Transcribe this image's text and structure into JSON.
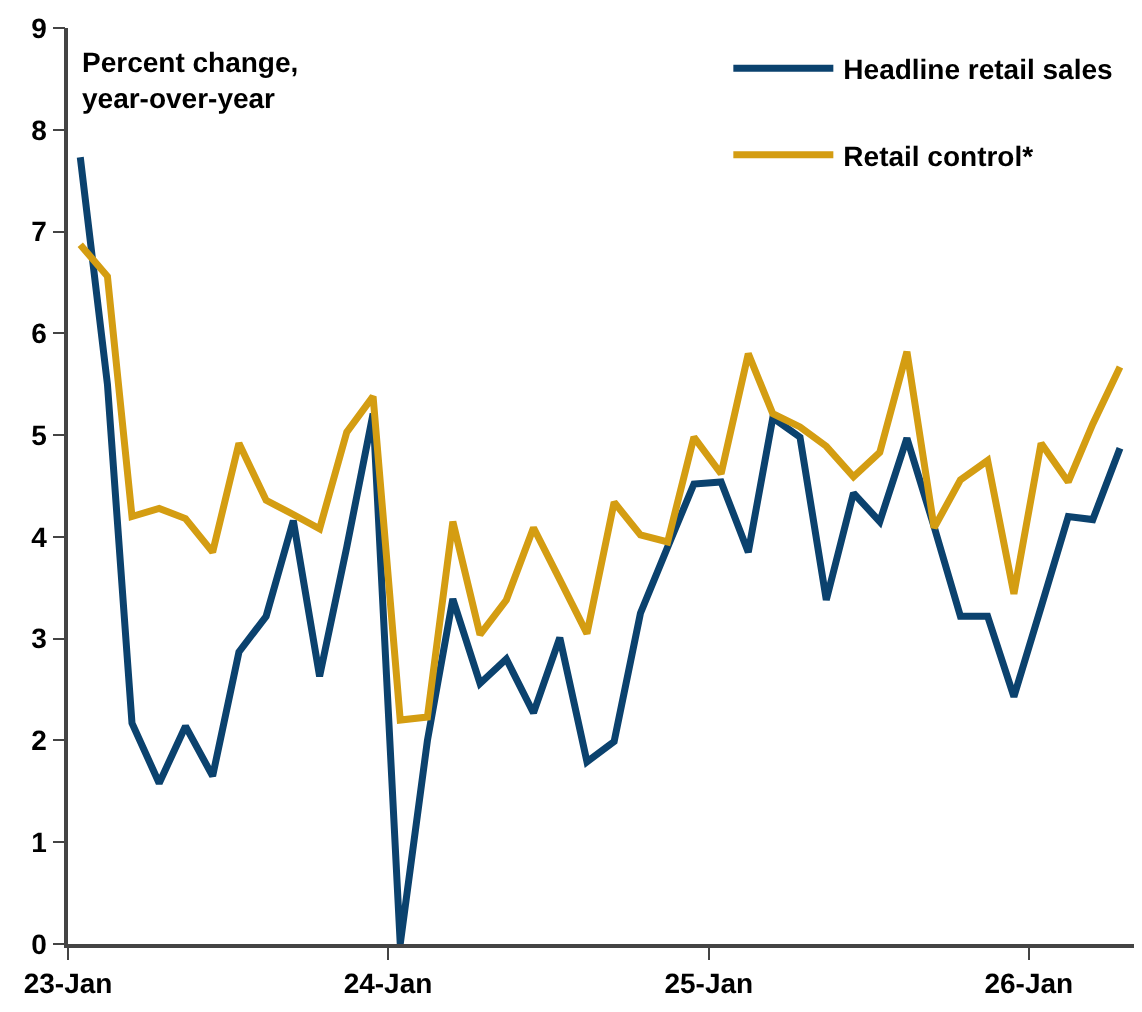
{
  "chart_data": {
    "type": "line",
    "x": [
      "2023-01-15",
      "2023-02-15",
      "2023-03-15",
      "2023-04-15",
      "2023-05-15",
      "2023-06-15",
      "2023-07-15",
      "2023-08-15",
      "2023-09-15",
      "2023-10-15",
      "2023-11-15",
      "2023-12-15",
      "2024-01-15",
      "2024-02-15",
      "2024-03-15",
      "2024-04-15",
      "2024-05-15",
      "2024-06-15",
      "2024-07-15",
      "2024-08-15",
      "2024-09-15",
      "2024-10-15",
      "2024-11-15",
      "2024-12-15",
      "2025-01-15",
      "2025-02-15",
      "2025-03-15",
      "2025-04-15",
      "2025-05-15",
      "2025-06-15",
      "2025-07-15",
      "2025-08-15",
      "2025-09-15",
      "2025-10-15",
      "2025-11-15",
      "2025-12-15",
      "2026-01-15",
      "2026-02-15",
      "2026-03-15",
      "2026-04-15"
    ],
    "series": [
      {
        "name": "Headline retail sales",
        "color": "#0b426e",
        "values": [
          7.73,
          5.5,
          2.17,
          1.58,
          2.14,
          1.65,
          2.87,
          3.22,
          4.16,
          2.63,
          3.9,
          5.21,
          0.0,
          2.0,
          3.39,
          2.56,
          2.8,
          2.27,
          3.01,
          1.79,
          1.99,
          3.25,
          3.9,
          4.52,
          4.54,
          3.85,
          5.17,
          4.98,
          3.38,
          4.43,
          4.15,
          4.97,
          4.1,
          3.22,
          3.22,
          2.43,
          3.31,
          4.2,
          4.17,
          4.87
        ]
      },
      {
        "name": "Retail control*",
        "color": "#d49d12",
        "values": [
          6.87,
          6.56,
          4.2,
          4.28,
          4.18,
          3.85,
          4.92,
          4.36,
          4.22,
          4.08,
          5.03,
          5.38,
          2.2,
          2.23,
          4.15,
          3.04,
          3.38,
          4.09,
          3.58,
          3.05,
          4.34,
          4.02,
          3.95,
          4.98,
          4.62,
          5.8,
          5.21,
          5.08,
          4.89,
          4.59,
          4.83,
          5.82,
          4.09,
          4.56,
          4.75,
          3.44,
          4.92,
          4.54,
          5.11,
          5.67
        ]
      }
    ],
    "xlim": [
      "2023-01-01",
      "2026-05-01"
    ],
    "xticks": [
      {
        "value": "2023-01-01",
        "label": "23-Jan"
      },
      {
        "value": "2024-01-01",
        "label": "24-Jan"
      },
      {
        "value": "2025-01-01",
        "label": "25-Jan"
      },
      {
        "value": "2026-01-01",
        "label": "26-Jan"
      }
    ],
    "ylim": [
      0,
      9
    ],
    "yticks": [
      0,
      1,
      2,
      3,
      4,
      5,
      6,
      7,
      8,
      9
    ],
    "grid": false,
    "legend": "top right",
    "marker": "none",
    "line_style": "solid",
    "annotations": [
      "Percent change,\nyear-over-year"
    ]
  }
}
